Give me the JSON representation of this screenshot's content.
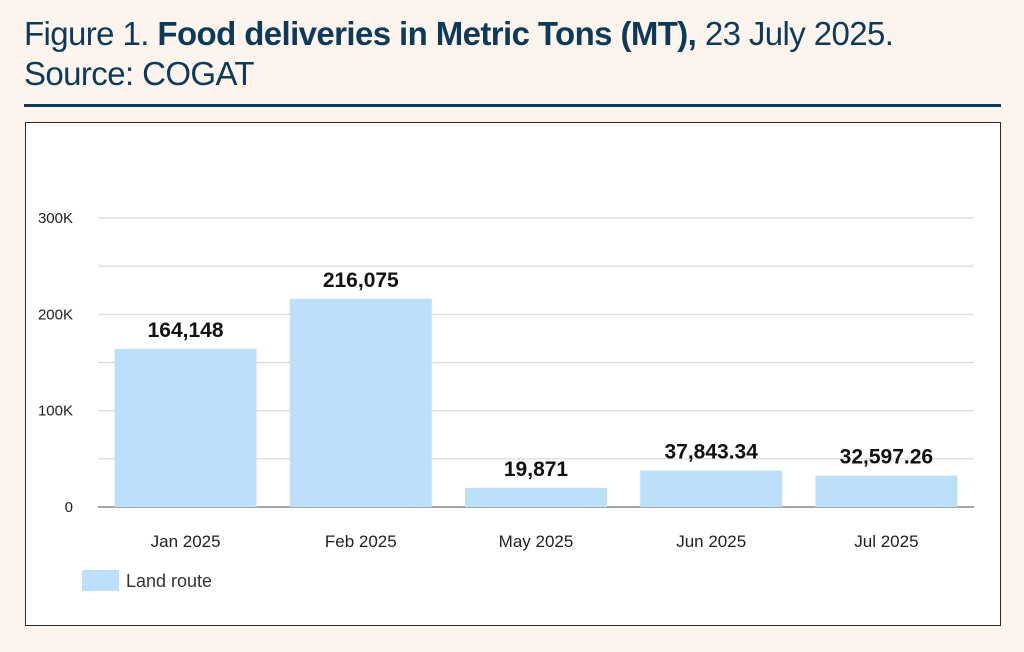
{
  "header": {
    "prefix": "Figure 1.",
    "title": "Food deliveries in Metric Tons (MT),",
    "date": "23 July 2025.",
    "source": "Source:  COGAT"
  },
  "colors": {
    "bar": "#bde0fa",
    "grid": "#d9d9d9",
    "text": "#1f1f1f",
    "header": "#0e3a5a"
  },
  "chart_data": {
    "type": "bar",
    "title": "Food deliveries in Metric Tons (MT)",
    "categories": [
      "Jan 2025",
      "Feb 2025",
      "May 2025",
      "Jun 2025",
      "Jul 2025"
    ],
    "series": [
      {
        "name": "Land route",
        "values": [
          164148,
          216075,
          19871,
          37843.34,
          32597.26
        ],
        "labels": [
          "164,148",
          "216,075",
          "19,871",
          "37,843.34",
          "32,597.26"
        ]
      }
    ],
    "ylim": [
      0,
      300000
    ],
    "yticks": [
      0,
      100000,
      200000,
      300000
    ],
    "ytick_labels": [
      "0",
      "100K",
      "200K",
      "300K"
    ],
    "minor_grid_step": 50000,
    "grid": true,
    "legend_position": "bottom-left",
    "xlabel": "",
    "ylabel": ""
  }
}
